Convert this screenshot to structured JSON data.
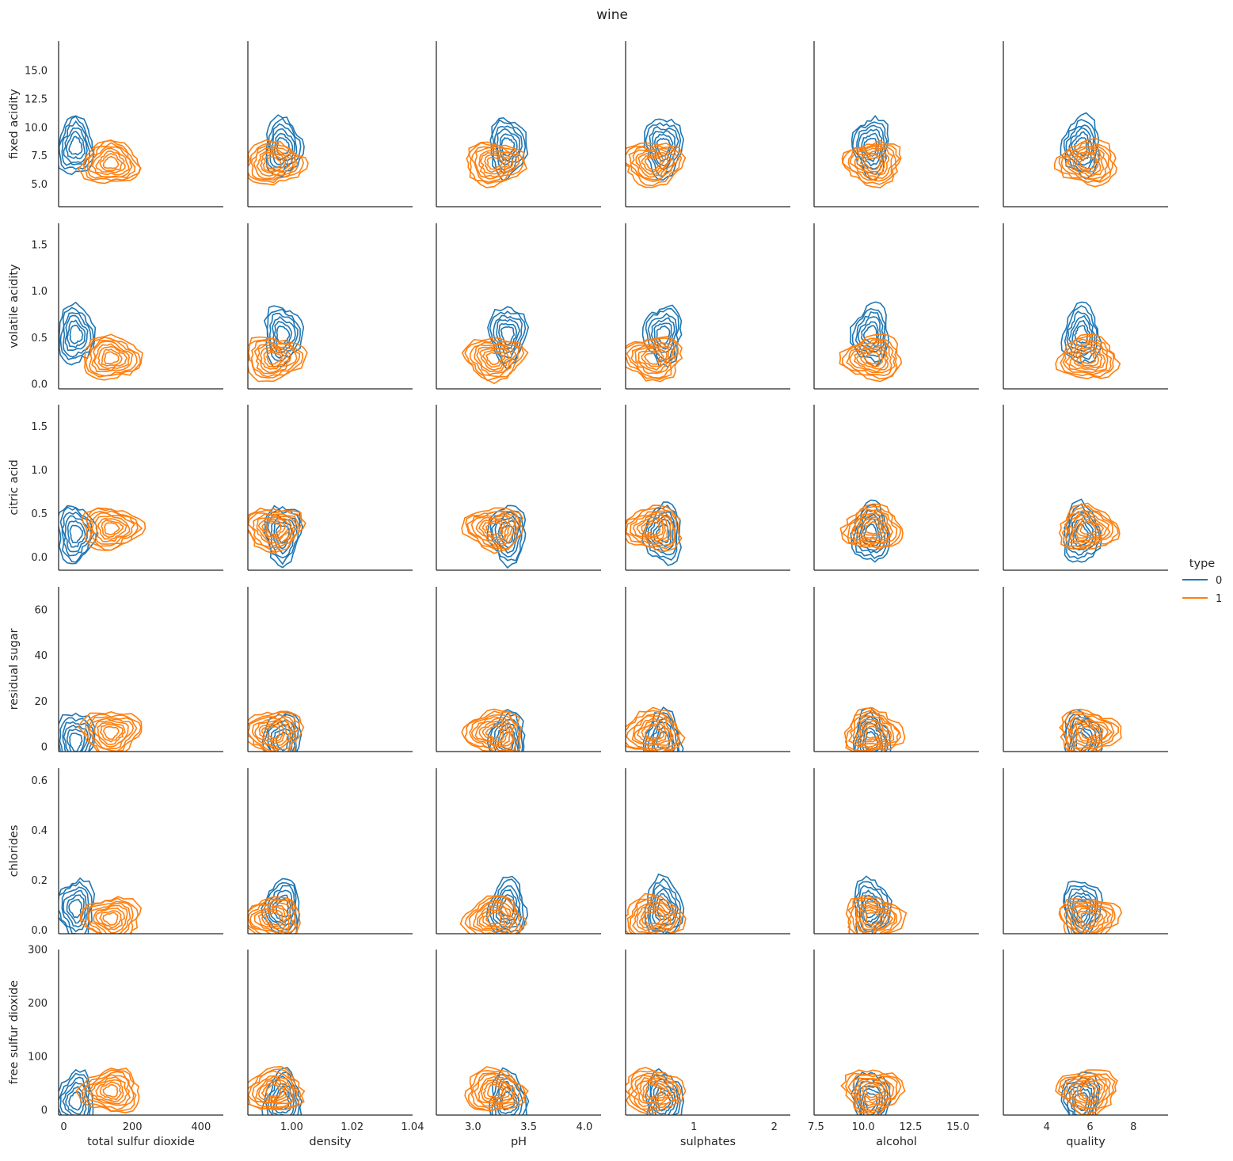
{
  "chart_data": {
    "type": "kde-contour-pairgrid",
    "title": "wine",
    "hue": "type",
    "legend": {
      "title": "type",
      "placement": "right",
      "entries": [
        {
          "label": "0",
          "color": "#1f77b4"
        },
        {
          "label": "1",
          "color": "#ff7f0e"
        }
      ]
    },
    "columns": [
      {
        "label": "total sulfur dioxide",
        "xlim": [
          -15,
          465
        ],
        "ticks": [
          0,
          200,
          400
        ],
        "tick_labels": [
          "0",
          "200",
          "400"
        ]
      },
      {
        "label": "density",
        "xlim": [
          0.9855,
          1.04
        ],
        "ticks": [
          1.0,
          1.02,
          1.04
        ],
        "tick_labels": [
          "1.00",
          "1.02",
          "1.04"
        ]
      },
      {
        "label": "pH",
        "xlim": [
          2.67,
          4.15
        ],
        "ticks": [
          3.0,
          3.5,
          4.0
        ],
        "tick_labels": [
          "3.0",
          "3.5",
          "4.0"
        ]
      },
      {
        "label": "sulphates",
        "xlim": [
          0.15,
          2.2
        ],
        "ticks": [
          1,
          2
        ],
        "tick_labels": [
          "1",
          "2"
        ]
      },
      {
        "label": "alcohol",
        "xlim": [
          7.4,
          16.1
        ],
        "ticks": [
          7.5,
          10.0,
          12.5,
          15.0
        ],
        "tick_labels": [
          "7.5",
          "10.0",
          "12.5",
          "15.0"
        ]
      },
      {
        "label": "quality",
        "xlim": [
          2.0,
          9.6
        ],
        "ticks": [
          4,
          6,
          8
        ],
        "tick_labels": [
          "4",
          "6",
          "8"
        ]
      }
    ],
    "rows": [
      {
        "label": "fixed acidity",
        "ylim": [
          3.0,
          17.6
        ],
        "ticks": [
          5.0,
          7.5,
          10.0,
          12.5,
          15.0
        ],
        "tick_labels": [
          "5.0",
          "7.5",
          "10.0",
          "12.5",
          "15.0"
        ]
      },
      {
        "label": "volatile acidity",
        "ylim": [
          -0.05,
          1.73
        ],
        "ticks": [
          0.0,
          0.5,
          1.0,
          1.5
        ],
        "tick_labels": [
          "0.0",
          "0.5",
          "1.0",
          "1.5"
        ]
      },
      {
        "label": "citric acid",
        "ylim": [
          -0.15,
          1.75
        ],
        "ticks": [
          0.0,
          0.5,
          1.0,
          1.5
        ],
        "tick_labels": [
          "0.0",
          "0.5",
          "1.0",
          "1.5"
        ]
      },
      {
        "label": "residual sugar",
        "ylim": [
          -2,
          70
        ],
        "ticks": [
          0,
          20,
          40,
          60
        ],
        "tick_labels": [
          "0",
          "20",
          "40",
          "60"
        ]
      },
      {
        "label": "chlorides",
        "ylim": [
          -0.015,
          0.65
        ],
        "ticks": [
          0.0,
          0.2,
          0.4,
          0.6
        ],
        "tick_labels": [
          "0.0",
          "0.2",
          "0.4",
          "0.6"
        ]
      },
      {
        "label": "free sulfur dioxide",
        "ylim": [
          -10,
          300
        ],
        "ticks": [
          0,
          100,
          200,
          300
        ],
        "tick_labels": [
          "0",
          "100",
          "200",
          "300"
        ]
      }
    ],
    "group_summary": {
      "0": {
        "total sulfur dioxide": 35,
        "density": 0.997,
        "pH": 3.31,
        "sulphates": 0.62,
        "alcohol": 10.4,
        "quality": 5.6,
        "fixed acidity": 8.3,
        "volatile acidity": 0.53,
        "citric acid": 0.27,
        "residual sugar": 2.5,
        "chlorides": 0.087,
        "free sulfur dioxide": 16
      },
      "1": {
        "total sulfur dioxide": 138,
        "density": 0.994,
        "pH": 3.19,
        "sulphates": 0.49,
        "alcohol": 10.5,
        "quality": 5.9,
        "fixed acidity": 6.85,
        "volatile acidity": 0.28,
        "citric acid": 0.33,
        "residual sugar": 6.4,
        "chlorides": 0.046,
        "free sulfur dioxide": 35
      }
    }
  }
}
